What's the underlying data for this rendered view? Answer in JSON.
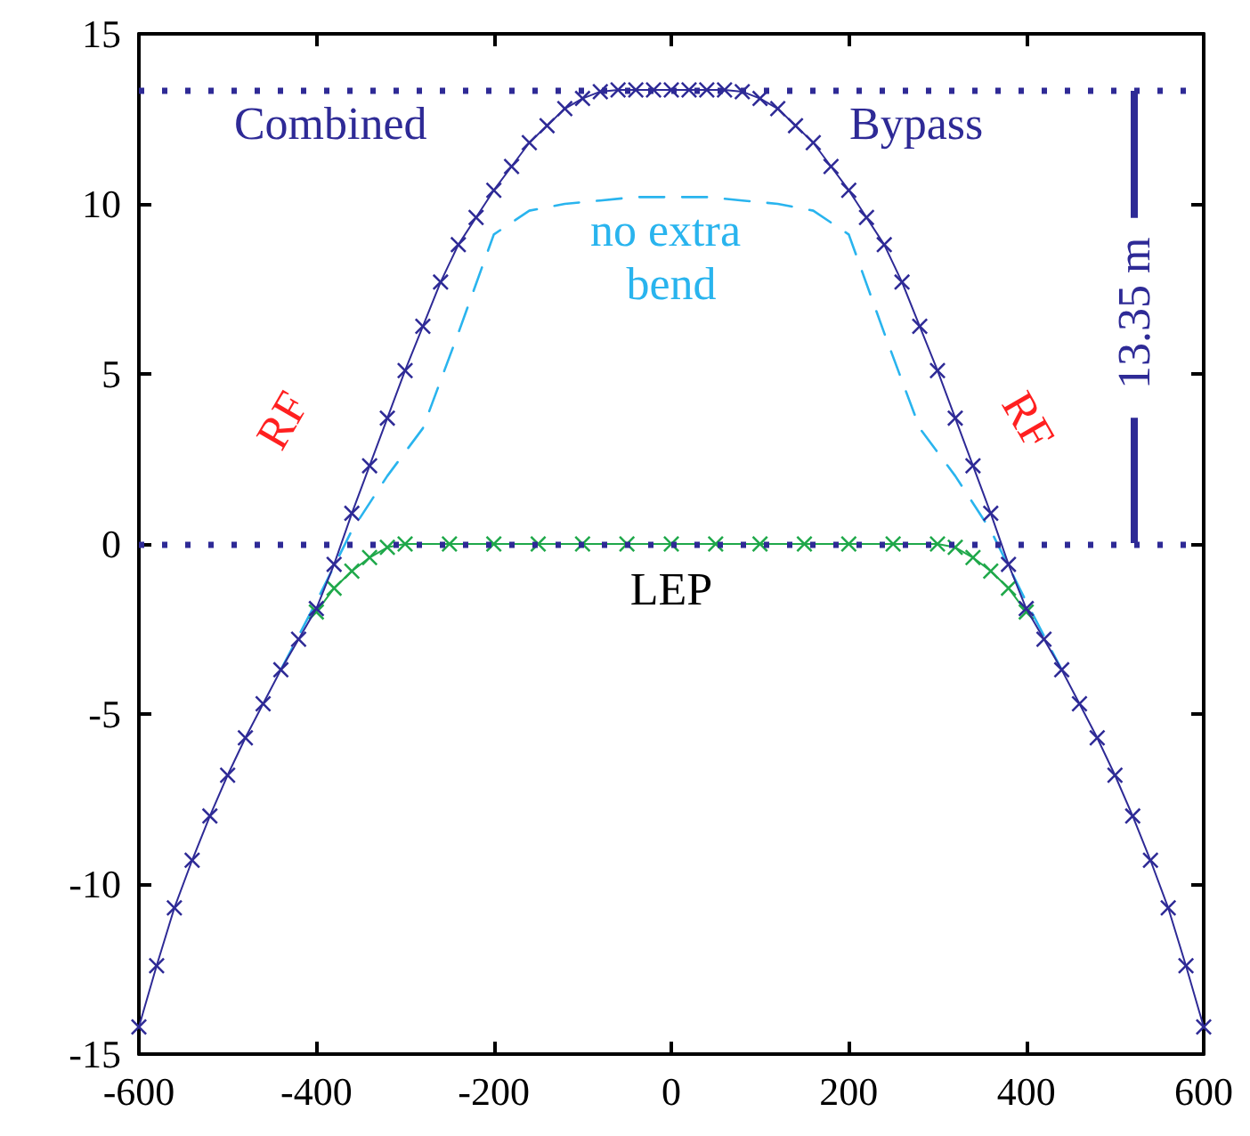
{
  "chart_data": {
    "type": "line",
    "xlim": [
      -600,
      600
    ],
    "ylim": [
      -15,
      15
    ],
    "xticks": [
      -600,
      -400,
      -200,
      0,
      200,
      400,
      600
    ],
    "yticks": [
      -15,
      -10,
      -5,
      0,
      5,
      10,
      15
    ],
    "grid": false,
    "series": [
      {
        "color": "#2e2a96",
        "marker": "cross",
        "line_style": "solid",
        "x": [
          -600,
          -580,
          -560,
          -540,
          -520,
          -500,
          -480,
          -460,
          -440,
          -420,
          -400,
          -380,
          -360,
          -340,
          -320,
          -300,
          -280,
          -260,
          -240,
          -220,
          -200,
          -180,
          -160,
          -140,
          -120,
          -100,
          -80,
          -60,
          -40,
          -20,
          0,
          20,
          40,
          60,
          80,
          100,
          120,
          140,
          160,
          180,
          200,
          220,
          240,
          260,
          280,
          300,
          320,
          340,
          360,
          380,
          400,
          420,
          440,
          460,
          480,
          500,
          520,
          540,
          560,
          580,
          600
        ],
        "values": [
          -14.2,
          -12.4,
          -10.7,
          -9.3,
          -8.0,
          -6.8,
          -5.7,
          -4.7,
          -3.7,
          -2.8,
          -1.9,
          -0.6,
          0.9,
          2.3,
          3.7,
          5.1,
          6.4,
          7.7,
          8.8,
          9.6,
          10.4,
          11.1,
          11.8,
          12.3,
          12.8,
          13.1,
          13.3,
          13.35,
          13.35,
          13.35,
          13.35,
          13.35,
          13.35,
          13.35,
          13.3,
          13.1,
          12.8,
          12.3,
          11.8,
          11.1,
          10.4,
          9.6,
          8.8,
          7.7,
          6.4,
          5.1,
          3.7,
          2.3,
          0.9,
          -0.6,
          -1.9,
          -2.8,
          -3.7,
          -4.7,
          -5.7,
          -6.8,
          -8.0,
          -9.3,
          -10.7,
          -12.4,
          -14.2
        ]
      },
      {
        "color": "#1fa84a",
        "marker": "cross",
        "line_style": "solid",
        "x": [
          -400,
          -380,
          -360,
          -340,
          -320,
          -300,
          -250,
          -200,
          -150,
          -100,
          -50,
          0,
          50,
          100,
          150,
          200,
          250,
          300,
          320,
          340,
          360,
          380,
          400
        ],
        "values": [
          -2.0,
          -1.3,
          -0.8,
          -0.4,
          -0.1,
          0,
          0,
          0,
          0,
          0,
          0,
          0,
          0,
          0,
          0,
          0,
          0,
          0,
          -0.1,
          -0.4,
          -0.8,
          -1.3,
          -2.0
        ]
      },
      {
        "color": "#29b4ee",
        "marker": "none",
        "line_style": "dashed",
        "x": [
          -440,
          -400,
          -360,
          -320,
          -280,
          -240,
          -200,
          -160,
          -120,
          -80,
          -40,
          0,
          40,
          80,
          120,
          160,
          200,
          240,
          280,
          320,
          360,
          400,
          440
        ],
        "values": [
          -3.7,
          -1.7,
          0.4,
          2.0,
          3.4,
          6.2,
          9.1,
          9.8,
          10.0,
          10.1,
          10.2,
          10.2,
          10.2,
          10.1,
          10.0,
          9.8,
          9.1,
          6.2,
          3.4,
          2.0,
          0.4,
          -1.7,
          -3.7
        ]
      }
    ],
    "ref_lines": [
      {
        "axis": "y",
        "value": 13.35,
        "color": "#2e2a96",
        "line_style": "dotted"
      },
      {
        "axis": "y",
        "value": 0,
        "color": "#2e2a96",
        "line_style": "dotted"
      }
    ],
    "annotations": [
      "Combined",
      "Bypass",
      "no extra bend",
      "RF",
      "RF",
      "LEP",
      "13.35 m"
    ]
  }
}
